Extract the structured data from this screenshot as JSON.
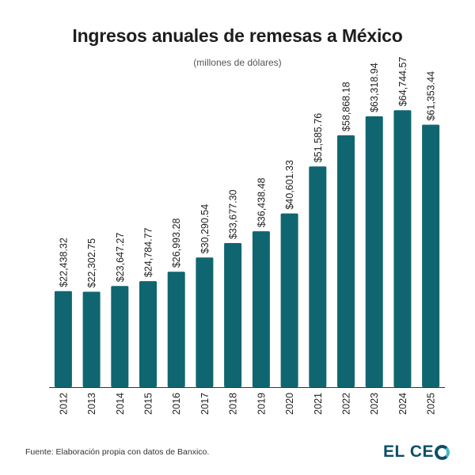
{
  "chart_data": {
    "type": "bar",
    "title": "Ingresos anuales de remesas a México",
    "subtitle": "(millones de dólares)",
    "categories": [
      "2012",
      "2013",
      "2014",
      "2015",
      "2016",
      "2017",
      "2018",
      "2019",
      "2020",
      "2021",
      "2022",
      "2023",
      "2024",
      "2025"
    ],
    "values": [
      22438.32,
      22302.75,
      23647.27,
      24784.77,
      26993.28,
      30290.54,
      33677.3,
      36438.48,
      40601.33,
      51585.76,
      58868.18,
      63318.94,
      64744.57,
      61353.44
    ],
    "value_labels": [
      "$22,438.32",
      "$22,302.75",
      "$23,647.27",
      "$24,784.77",
      "$26,993.28",
      "$30,290.54",
      "$33,677.30",
      "$36,438.48",
      "$40,601.33",
      "$51,585.76",
      "$58,868.18",
      "$63,318.94",
      "$64,744.57",
      "$61,353.44"
    ],
    "xlabel": "",
    "ylabel": "",
    "ylim": [
      0,
      72000
    ],
    "grid": false,
    "bar_color": "#0f6670"
  },
  "footer": {
    "source": "Fuente: Elaboración propia con datos de Banxico.",
    "logo_text_prefix": "EL CE"
  }
}
